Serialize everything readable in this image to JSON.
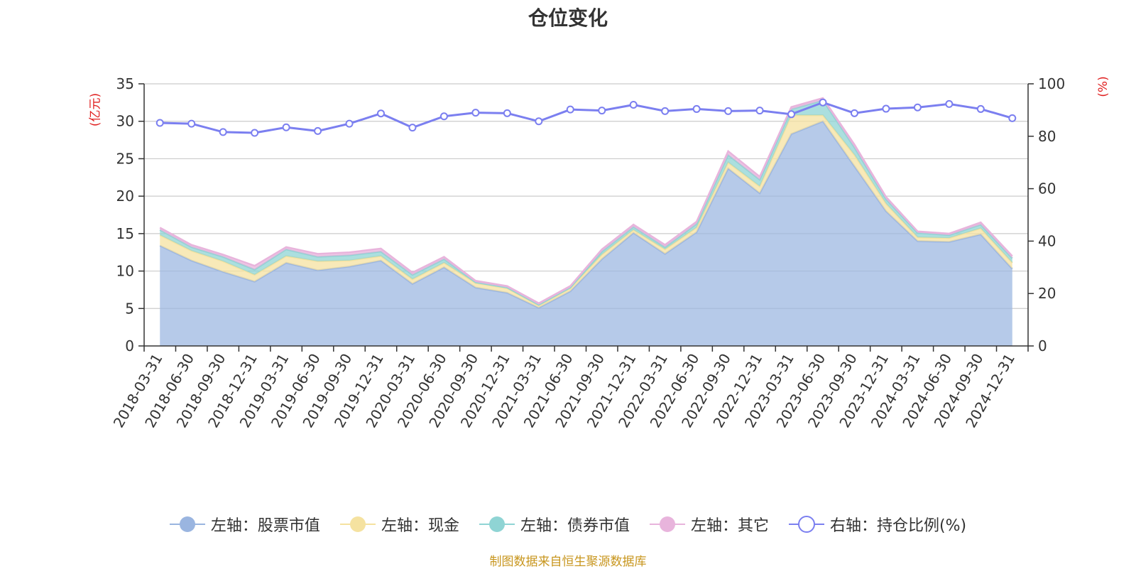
{
  "title": "仓位变化",
  "left_unit": "(亿元)",
  "right_unit": "(%)",
  "source": "制图数据来自恒生聚源数据库",
  "colors": {
    "stock": "#9ab5e0",
    "cash": "#f5e2a0",
    "bond": "#8fd4d4",
    "other": "#e8b4dc",
    "ratio": "#7b7ff0",
    "axis_unit": "#e02020",
    "source": "#c8961e"
  },
  "chart_data": {
    "type": "area",
    "categories": [
      "2018-03-31",
      "2018-06-30",
      "2018-09-30",
      "2018-12-31",
      "2019-03-31",
      "2019-06-30",
      "2019-09-30",
      "2019-12-31",
      "2020-03-31",
      "2020-06-30",
      "2020-09-30",
      "2020-12-31",
      "2021-03-31",
      "2021-06-30",
      "2021-09-30",
      "2021-12-31",
      "2022-03-31",
      "2022-06-30",
      "2022-09-30",
      "2022-12-31",
      "2023-03-31",
      "2023-06-30",
      "2023-09-30",
      "2023-12-31",
      "2024-03-31",
      "2024-06-30",
      "2024-09-30",
      "2024-12-31"
    ],
    "y_left_lim": [
      0,
      35
    ],
    "y_left_ticks": [
      0,
      5,
      10,
      15,
      20,
      25,
      30,
      35
    ],
    "y_right_lim": [
      0,
      100
    ],
    "y_right_ticks": [
      0,
      20,
      40,
      60,
      80,
      100
    ],
    "grid": true,
    "legend_position": "bottom",
    "series": [
      {
        "name": "左轴：股票市值",
        "axis": "left",
        "stack": true,
        "values": [
          13.4,
          11.4,
          9.9,
          8.6,
          11.1,
          10.1,
          10.6,
          11.4,
          8.3,
          10.5,
          7.8,
          7.1,
          5.1,
          7.3,
          11.6,
          15.1,
          12.3,
          15.2,
          23.7,
          20.4,
          28.3,
          30.0,
          24.0,
          18.0,
          14.0,
          13.9,
          14.9,
          10.3
        ]
      },
      {
        "name": "左轴：现金",
        "axis": "left",
        "stack": true,
        "values": [
          1.4,
          1.3,
          1.4,
          0.9,
          0.9,
          1.2,
          0.8,
          0.6,
          0.6,
          0.6,
          0.6,
          0.6,
          0.3,
          0.4,
          0.6,
          0.4,
          0.6,
          0.6,
          0.8,
          0.9,
          2.5,
          0.8,
          1.5,
          1.0,
          0.5,
          0.5,
          0.8,
          0.8
        ]
      },
      {
        "name": "左轴：债券市值",
        "axis": "left",
        "stack": true,
        "values": [
          0.7,
          0.5,
          0.6,
          0.7,
          0.9,
          0.6,
          0.7,
          0.6,
          0.6,
          0.5,
          0.1,
          0.1,
          0.1,
          0.1,
          0.4,
          0.4,
          0.3,
          0.5,
          1.0,
          0.9,
          0.8,
          2.0,
          1.0,
          0.6,
          0.6,
          0.4,
          0.5,
          0.6
        ]
      },
      {
        "name": "左轴：其它",
        "axis": "left",
        "stack": true,
        "values": [
          0.3,
          0.3,
          0.3,
          0.5,
          0.3,
          0.4,
          0.4,
          0.4,
          0.3,
          0.3,
          0.2,
          0.2,
          0.2,
          0.2,
          0.3,
          0.3,
          0.3,
          0.3,
          0.5,
          0.4,
          0.3,
          0.3,
          0.4,
          0.3,
          0.2,
          0.2,
          0.3,
          0.3
        ]
      },
      {
        "name": "右轴：持仓比例(%)",
        "axis": "right",
        "type": "line",
        "values": [
          85.1,
          84.8,
          81.6,
          81.3,
          83.4,
          82.0,
          84.8,
          88.7,
          83.3,
          87.6,
          89.0,
          88.8,
          85.7,
          90.2,
          89.8,
          92.0,
          89.6,
          90.4,
          89.6,
          89.8,
          88.4,
          92.9,
          88.8,
          90.5,
          91.0,
          92.3,
          90.4,
          86.9
        ]
      }
    ]
  }
}
